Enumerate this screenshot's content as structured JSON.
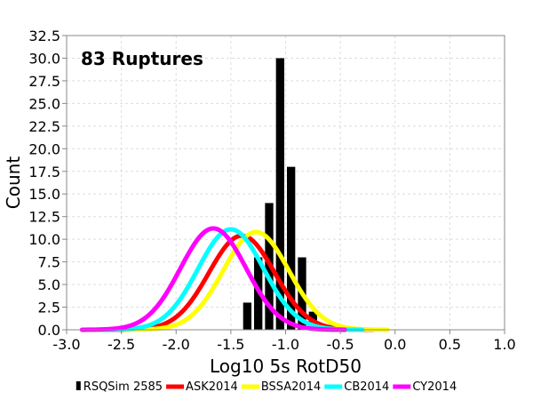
{
  "chart_data": {
    "type": "bar",
    "annotation": "83 Ruptures",
    "xlabel": "Log10 5s RotD50",
    "ylabel": "Count",
    "xlim": [
      -3.0,
      1.0
    ],
    "ylim": [
      0.0,
      32.5
    ],
    "x_ticks": [
      "-3.0",
      "-2.5",
      "-2.0",
      "-1.5",
      "-1.0",
      "-0.5",
      "0.0",
      "0.5",
      "1.0"
    ],
    "y_ticks": [
      "0.0",
      "2.5",
      "5.0",
      "7.5",
      "10.0",
      "12.5",
      "15.0",
      "17.5",
      "20.0",
      "22.5",
      "25.0",
      "27.5",
      "30.0",
      "32.5"
    ],
    "grid": true,
    "legend_position": "bottom",
    "histogram": {
      "name": "RSQSim 2585",
      "color": "#000000",
      "bin_width": 0.1,
      "bin_starts": [
        -1.4,
        -1.3,
        -1.2,
        -1.1,
        -1.0,
        -0.9,
        -0.8
      ],
      "counts": [
        3,
        8,
        14,
        30,
        18,
        8,
        2
      ]
    },
    "series": [
      {
        "name": "ASK2014",
        "color": "#ff0000",
        "mean": -1.4,
        "sd": 0.3,
        "peak": 10.4
      },
      {
        "name": "BSSA2014",
        "color": "#ffff00",
        "mean": -1.27,
        "sd": 0.3,
        "peak": 10.8
      },
      {
        "name": "CB2014",
        "color": "#00ffff",
        "mean": -1.5,
        "sd": 0.3,
        "peak": 11.1
      },
      {
        "name": "CY2014",
        "color": "#ff00ff",
        "mean": -1.66,
        "sd": 0.3,
        "peak": 11.2
      }
    ]
  }
}
